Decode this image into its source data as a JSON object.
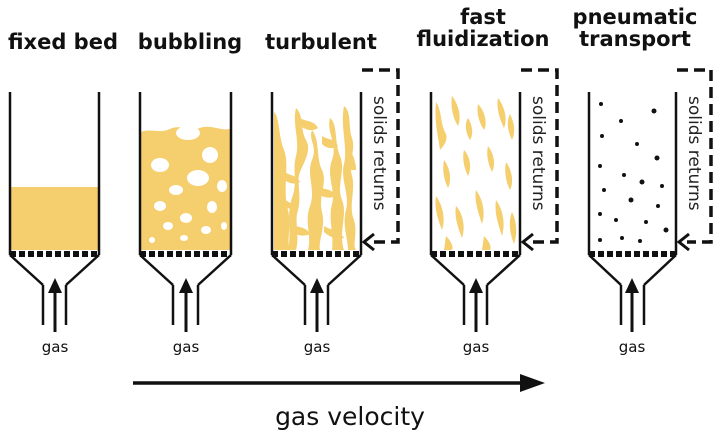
{
  "regimes": [
    {
      "title_line1": "fixed bed",
      "title_line2": "",
      "gas_label": "gas",
      "solids_returns": ""
    },
    {
      "title_line1": "bubbling",
      "title_line2": "",
      "gas_label": "gas",
      "solids_returns": ""
    },
    {
      "title_line1": "turbulent",
      "title_line2": "",
      "gas_label": "gas",
      "solids_returns": "solids returns"
    },
    {
      "title_line1": "fast",
      "title_line2": "fluidization",
      "gas_label": "gas",
      "solids_returns": "solids returns"
    },
    {
      "title_line1": "pneumatic",
      "title_line2": "transport",
      "gas_label": "gas",
      "solids_returns": "solids returns"
    }
  ],
  "axis_label": "gas velocity",
  "colors": {
    "solids": "#F5CE6E",
    "outline": "#111111",
    "bubble": "#ffffff"
  }
}
